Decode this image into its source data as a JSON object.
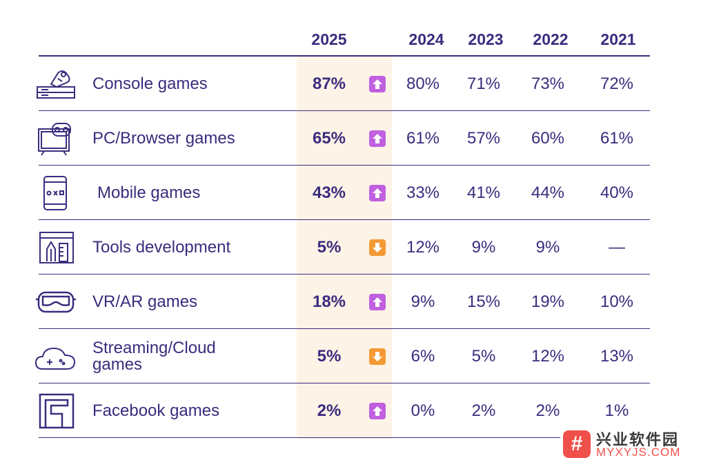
{
  "chart_data": {
    "type": "table",
    "columns": [
      "2025",
      "2024",
      "2023",
      "2022",
      "2021"
    ],
    "rows": [
      {
        "label": "Console games",
        "icon": "console-icon",
        "values": [
          "87%",
          "80%",
          "71%",
          "73%",
          "72%"
        ],
        "trend": "up"
      },
      {
        "label": "PC/Browser games",
        "icon": "pc-monitor-icon",
        "values": [
          "65%",
          "61%",
          "57%",
          "60%",
          "61%"
        ],
        "trend": "up"
      },
      {
        "label": "Mobile games",
        "icon": "mobile-phone-icon",
        "values": [
          "43%",
          "33%",
          "41%",
          "44%",
          "40%"
        ],
        "trend": "up"
      },
      {
        "label": "Tools development",
        "icon": "tools-window-icon",
        "values": [
          "5%",
          "12%",
          "9%",
          "9%",
          "—"
        ],
        "trend": "down"
      },
      {
        "label": "VR/AR games",
        "icon": "vr-headset-icon",
        "values": [
          "18%",
          "9%",
          "15%",
          "19%",
          "10%"
        ],
        "trend": "up"
      },
      {
        "label": "Streaming/Cloud games",
        "icon": "cloud-gamepad-icon",
        "values": [
          "5%",
          "6%",
          "5%",
          "12%",
          "13%"
        ],
        "trend": "down"
      },
      {
        "label": "Facebook games",
        "icon": "facebook-logo-icon",
        "values": [
          "2%",
          "0%",
          "2%",
          "2%",
          "1%"
        ],
        "trend": "up"
      }
    ]
  },
  "colors": {
    "text": "#3b2b7e",
    "highlight": "#fdf3e6",
    "up_arrow": "#c05fe0",
    "down_arrow": "#f49a34"
  },
  "watermark": {
    "top": "兴业软件园",
    "bottom": "MYXYJS.COM",
    "logo": "#"
  }
}
